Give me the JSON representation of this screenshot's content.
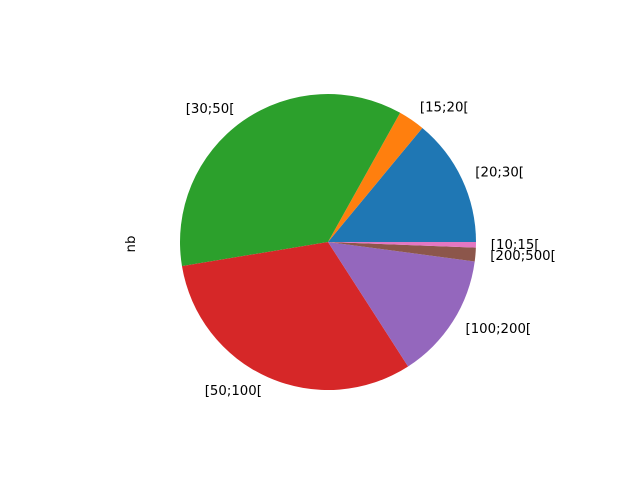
{
  "chart_data": {
    "type": "pie",
    "title": "",
    "ylabel": "nb",
    "start_angle_deg": 0,
    "direction": "counterclockwise",
    "slices": [
      {
        "label": "[20;30[",
        "value": 14.0,
        "color": "#1f77b4"
      },
      {
        "label": "[15;20[",
        "value": 2.9,
        "color": "#ff7f0e"
      },
      {
        "label": "[30;50[",
        "value": 35.7,
        "color": "#2ca02c"
      },
      {
        "label": "[50;100[",
        "value": 31.5,
        "color": "#d62728"
      },
      {
        "label": "[100;200[",
        "value": 13.8,
        "color": "#9467bd"
      },
      {
        "label": "[200;500[",
        "value": 1.5,
        "color": "#8c564b"
      },
      {
        "label": "[10;15[",
        "value": 0.6,
        "color": "#e377c2"
      }
    ]
  }
}
